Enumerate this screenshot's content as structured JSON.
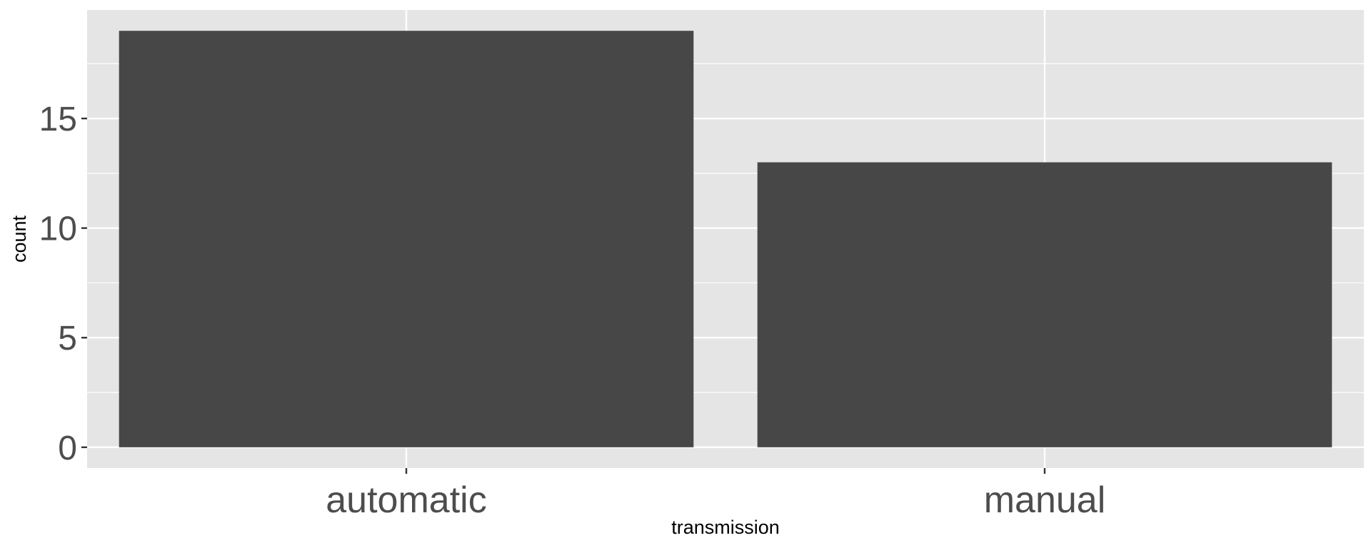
{
  "chart_data": {
    "type": "bar",
    "categories": [
      "automatic",
      "manual"
    ],
    "values": [
      19,
      13
    ],
    "xlabel": "transmission",
    "ylabel": "count",
    "ylim": [
      -0.95,
      19.95
    ],
    "yticks": [
      0,
      5,
      10,
      15
    ],
    "yticks_labels": [
      "0",
      "5",
      "10",
      "15"
    ],
    "grid": true,
    "colors": {
      "panel": "#e5e5e5",
      "bar": "#474747",
      "grid_major": "#ffffff",
      "tick": "#333333",
      "tick_label": "#4d4d4d"
    }
  }
}
